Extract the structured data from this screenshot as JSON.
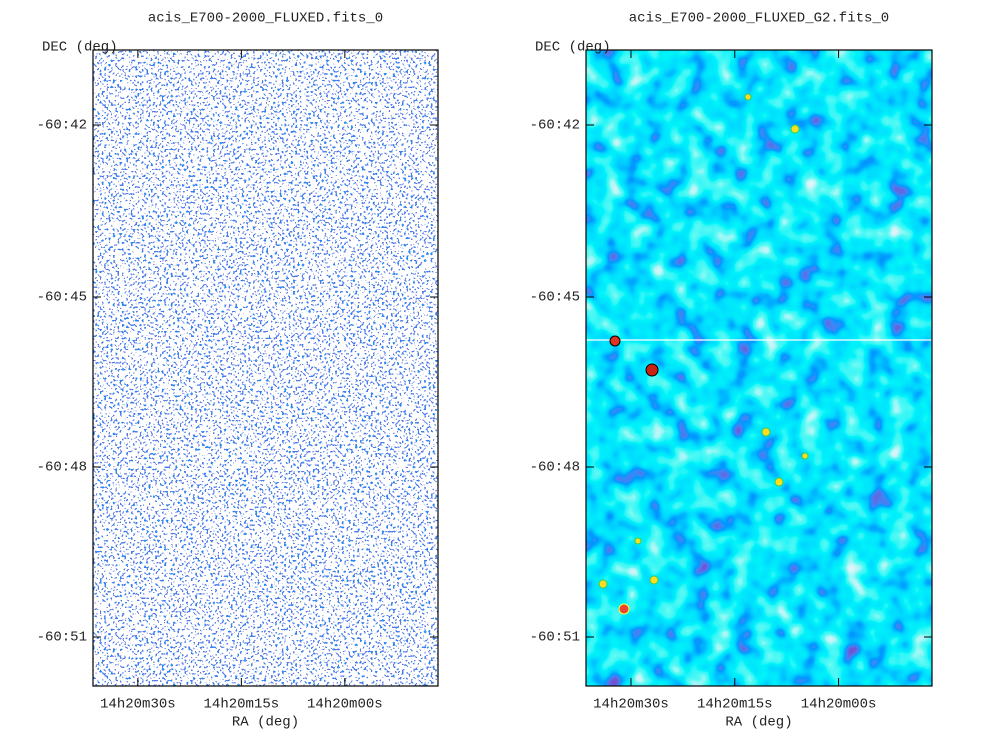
{
  "panels": [
    {
      "title": "acis_E700-2000_FLUXED.fits_0",
      "y_label": "DEC (deg)",
      "x_label": "RA (deg)",
      "yticks": [
        "-60:42",
        "-60:45",
        "-60:48",
        "-60:51"
      ],
      "xticks": [
        "14h20m30s",
        "14h20m15s",
        "14h20m00s"
      ]
    },
    {
      "title": "acis_E700-2000_FLUXED_G2.fits_0",
      "y_label": "DEC (deg)",
      "x_label": "RA (deg)",
      "yticks": [
        "-60:42",
        "-60:45",
        "-60:48",
        "-60:51"
      ],
      "xticks": [
        "14h20m30s",
        "14h20m15s",
        "14h20m00s"
      ]
    }
  ]
}
